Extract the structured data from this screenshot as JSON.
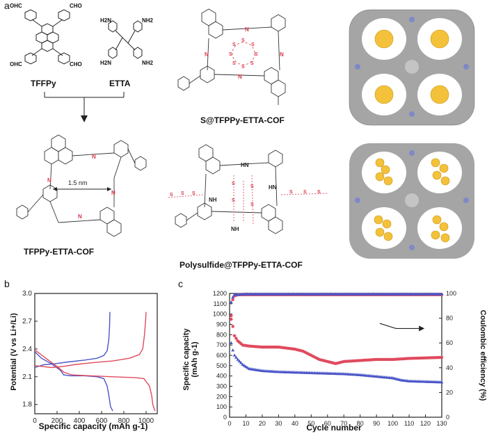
{
  "panel_a": {
    "letter": "a",
    "monomer1": {
      "name": "TFFPy",
      "groups": [
        "OHC",
        "CHO",
        "OHC",
        "CHO"
      ]
    },
    "monomer2": {
      "name": "ETTA",
      "groups": [
        "H2N",
        "NH2",
        "H2N",
        "NH2"
      ]
    },
    "cof_name": "TFPPy-ETTA-COF",
    "pore_label": "1.5 nm",
    "s_cof_name": "S@TFPPy-ETTA-COF",
    "ps_cof_name": "Polysulfide@TFPPy-ETTA-COF",
    "sulfur_atom": "S",
    "n_label": "N",
    "hn_label": "HN",
    "nh_label": "NH",
    "colors": {
      "sulfur": "#f0b62c",
      "nitrogen": "#d93a4a",
      "backbone": "#888888"
    }
  },
  "panel_b": {
    "letter": "b",
    "xlabel": "Specific capacity (mAh g-1)",
    "ylabel": "Potential (V vs Li+/Li)"
  },
  "panel_c": {
    "letter": "c",
    "xlabel": "Cycle number",
    "ylabel_left": "Specific capacity (mAh g-1)",
    "ylabel_right": "Coulombic efficiency (%)"
  },
  "chart_data": [
    {
      "type": "line",
      "xlabel": "Specific capacity (mAh g-1)",
      "ylabel": "Potential (V vs Li+/Li)",
      "xlim": [
        0,
        1100
      ],
      "ylim": [
        1.7,
        3.0
      ],
      "xticks": [
        0,
        200,
        400,
        600,
        800,
        1000
      ],
      "yticks": [
        1.8,
        2.1,
        2.4,
        2.7,
        3.0
      ],
      "series": [
        {
          "color": "#4a55c8",
          "values": [
            [
              0,
              2.37
            ],
            [
              60,
              2.3
            ],
            [
              150,
              2.24
            ],
            [
              230,
              2.17
            ],
            [
              260,
              2.12
            ],
            [
              320,
              2.11
            ],
            [
              450,
              2.11
            ],
            [
              560,
              2.1
            ],
            [
              620,
              2.08
            ],
            [
              650,
              2.0
            ],
            [
              665,
              1.9
            ],
            [
              680,
              1.78
            ],
            [
              700,
              1.73
            ]
          ]
        },
        {
          "color": "#4a55c8",
          "values": [
            [
              0,
              2.2
            ],
            [
              80,
              2.23
            ],
            [
              180,
              2.24
            ],
            [
              300,
              2.26
            ],
            [
              450,
              2.28
            ],
            [
              560,
              2.3
            ],
            [
              620,
              2.33
            ],
            [
              650,
              2.38
            ],
            [
              665,
              2.5
            ],
            [
              672,
              2.65
            ],
            [
              675,
              2.8
            ]
          ]
        },
        {
          "color": "#e04a5e",
          "values": [
            [
              0,
              2.39
            ],
            [
              100,
              2.3
            ],
            [
              200,
              2.21
            ],
            [
              260,
              2.15
            ],
            [
              330,
              2.12
            ],
            [
              500,
              2.11
            ],
            [
              700,
              2.1
            ],
            [
              900,
              2.09
            ],
            [
              980,
              2.08
            ],
            [
              1030,
              2.0
            ],
            [
              1050,
              1.9
            ],
            [
              1060,
              1.8
            ],
            [
              1080,
              1.73
            ]
          ]
        },
        {
          "color": "#e04a5e",
          "values": [
            [
              0,
              2.22
            ],
            [
              150,
              2.2
            ],
            [
              250,
              2.21
            ],
            [
              350,
              2.23
            ],
            [
              500,
              2.25
            ],
            [
              700,
              2.27
            ],
            [
              850,
              2.3
            ],
            [
              940,
              2.34
            ],
            [
              970,
              2.4
            ],
            [
              985,
              2.55
            ],
            [
              995,
              2.7
            ],
            [
              1000,
              2.8
            ]
          ]
        }
      ]
    },
    {
      "type": "scatter",
      "xlabel": "Cycle number",
      "ylabel": "Specific capacity (mAh g-1)",
      "y2label": "Coulombic efficiency (%)",
      "xlim": [
        0,
        130
      ],
      "ylim": [
        0,
        1200
      ],
      "y2lim": [
        0,
        100
      ],
      "xticks": [
        0,
        10,
        20,
        30,
        40,
        50,
        60,
        70,
        80,
        90,
        100,
        110,
        120,
        130
      ],
      "yticks": [
        0,
        100,
        200,
        300,
        400,
        500,
        600,
        700,
        800,
        900,
        1000,
        1100,
        1200
      ],
      "y2ticks": [
        0,
        20,
        40,
        60,
        80,
        100
      ],
      "series": [
        {
          "color": "#e04a5e",
          "marker": "circle",
          "values": [
            [
              1,
              950
            ],
            [
              2,
              880
            ],
            [
              3,
              790
            ],
            [
              5,
              740
            ],
            [
              8,
              700
            ],
            [
              12,
              690
            ],
            [
              20,
              680
            ],
            [
              30,
              680
            ],
            [
              40,
              660
            ],
            [
              45,
              640
            ],
            [
              50,
              600
            ],
            [
              55,
              560
            ],
            [
              60,
              540
            ],
            [
              65,
              520
            ],
            [
              70,
              540
            ],
            [
              80,
              550
            ],
            [
              90,
              560
            ],
            [
              100,
              560
            ],
            [
              110,
              570
            ],
            [
              120,
              575
            ],
            [
              130,
              580
            ]
          ]
        },
        {
          "color": "#4a55c8",
          "marker": "triangle",
          "values": [
            [
              1,
              720
            ],
            [
              2,
              650
            ],
            [
              3,
              600
            ],
            [
              5,
              560
            ],
            [
              8,
              510
            ],
            [
              12,
              470
            ],
            [
              20,
              450
            ],
            [
              30,
              440
            ],
            [
              40,
              435
            ],
            [
              50,
              430
            ],
            [
              60,
              425
            ],
            [
              70,
              420
            ],
            [
              80,
              410
            ],
            [
              90,
              395
            ],
            [
              100,
              380
            ],
            [
              105,
              360
            ],
            [
              110,
              350
            ],
            [
              120,
              345
            ],
            [
              130,
              340
            ]
          ]
        },
        {
          "color": "#e04a5e",
          "marker": "circle",
          "axis": "y2",
          "values": [
            [
              1,
              82
            ],
            [
              2,
              95
            ],
            [
              3,
              98
            ],
            [
              5,
              99
            ],
            [
              10,
              99
            ],
            [
              20,
              99
            ],
            [
              40,
              99
            ],
            [
              60,
              99
            ],
            [
              80,
              99
            ],
            [
              100,
              99
            ],
            [
              120,
              99
            ],
            [
              130,
              99
            ]
          ]
        },
        {
          "color": "#4a55c8",
          "marker": "triangle",
          "axis": "y2",
          "values": [
            [
              1,
              93
            ],
            [
              2,
              97
            ],
            [
              3,
              99
            ],
            [
              5,
              99
            ],
            [
              10,
              99.5
            ],
            [
              20,
              99.5
            ],
            [
              40,
              99.5
            ],
            [
              60,
              99.5
            ],
            [
              80,
              99.5
            ],
            [
              100,
              99.5
            ],
            [
              120,
              99.5
            ],
            [
              130,
              99.5
            ]
          ]
        }
      ]
    }
  ]
}
